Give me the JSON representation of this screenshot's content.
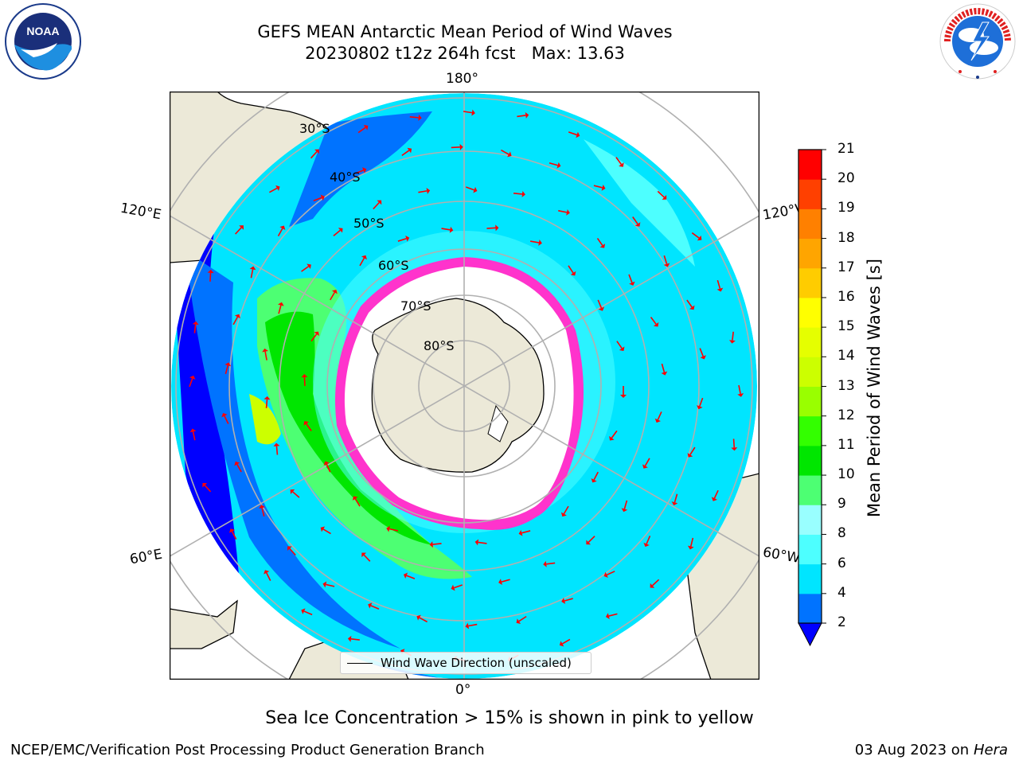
{
  "header": {
    "title_line1": "GEFS MEAN Antarctic Mean Period of Wind Waves",
    "title_line2": "20230802 t12z 264h fcst   Max: 13.63"
  },
  "map": {
    "projection": "south-polar-stereographic",
    "longitude_labels": {
      "top": "180°",
      "bottom": "0°",
      "upper_left": "120°E",
      "lower_left": "60°E",
      "upper_right": "120°W",
      "lower_right": "60°W"
    },
    "latitude_labels": [
      "30°S",
      "40°S",
      "50°S",
      "60°S",
      "70°S",
      "80°S"
    ],
    "legend_entry": "Wind Wave Direction (unscaled)",
    "colors": {
      "land": "#ece9d8",
      "sea_ice_fill": "#ffffff",
      "arrow": "#ff0000",
      "graticule": "#b0b0b0"
    }
  },
  "colorbar": {
    "label": "Mean Period of Wind Waves [s]",
    "tick_labels": [
      "2",
      "4",
      "6",
      "8",
      "9",
      "10",
      "11",
      "12",
      "13",
      "14",
      "15",
      "16",
      "17",
      "18",
      "19",
      "20",
      "21"
    ],
    "colors": [
      "#0000ff",
      "#0073ff",
      "#00e5ff",
      "#4dffff",
      "#99ffff",
      "#4dff73",
      "#00e600",
      "#33ff00",
      "#99ff00",
      "#ccff00",
      "#e5ff00",
      "#ffff00",
      "#ffcc00",
      "#ffa500",
      "#ff8000",
      "#ff4000",
      "#ff0000"
    ],
    "under_color": "#0000ff"
  },
  "footer": {
    "note": "Sea Ice Concentration > 15% is shown in pink to yellow",
    "branch": "NCEP/EMC/Verification Post Processing Product Generation Branch",
    "date": "03 Aug 2023 on",
    "machine": "Hera"
  },
  "logos": {
    "left": "NOAA",
    "right": "NATIONAL WEATHER SERVICE"
  }
}
